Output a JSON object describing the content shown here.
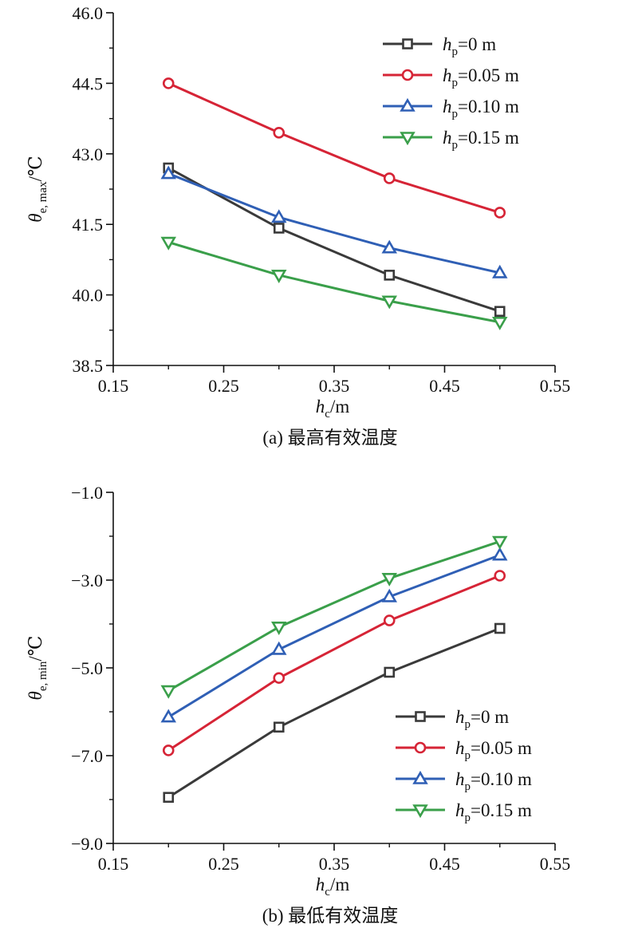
{
  "chart_data": [
    {
      "type": "line",
      "caption": "(a) 最高有效温度",
      "xlabel": {
        "main": "h",
        "sub": "c",
        "unit": "/m"
      },
      "ylabel": {
        "main": "θ",
        "sub": "e, max",
        "unit": "/℃"
      },
      "xlim": [
        0.15,
        0.55
      ],
      "ylim": [
        38.5,
        46.0
      ],
      "xticks": [
        0.15,
        0.25,
        0.35,
        0.45,
        0.55
      ],
      "xtick_labels": [
        "0.15",
        "0.25",
        "0.35",
        "0.45",
        "0.55"
      ],
      "yticks": [
        38.5,
        40.0,
        41.5,
        43.0,
        44.5,
        46.0
      ],
      "ytick_labels": [
        "38.5",
        "40.0",
        "41.5",
        "43.0",
        "44.5",
        "46.0"
      ],
      "legend_position": "top-right",
      "x": [
        0.2,
        0.3,
        0.4,
        0.5
      ],
      "series": [
        {
          "name": "h",
          "sub": "p",
          "value": "=0 m",
          "color": "#3a3a3a",
          "marker": "square",
          "values": [
            42.7,
            41.42,
            40.42,
            39.65
          ]
        },
        {
          "name": "h",
          "sub": "p",
          "value": "=0.05 m",
          "color": "#d62436",
          "marker": "circle",
          "values": [
            44.5,
            43.45,
            42.48,
            41.75
          ]
        },
        {
          "name": "h",
          "sub": "p",
          "value": "=0.10 m",
          "color": "#2f5fb5",
          "marker": "triangle-up",
          "values": [
            42.58,
            41.65,
            41.0,
            40.47
          ]
        },
        {
          "name": "h",
          "sub": "p",
          "value": "=0.15 m",
          "color": "#3a9f4a",
          "marker": "triangle-down",
          "values": [
            41.12,
            40.42,
            39.87,
            39.42
          ]
        }
      ]
    },
    {
      "type": "line",
      "caption": "(b) 最低有效温度",
      "xlabel": {
        "main": "h",
        "sub": "c",
        "unit": "/m"
      },
      "ylabel": {
        "main": "θ",
        "sub": "e, min",
        "unit": "/℃"
      },
      "xlim": [
        0.15,
        0.55
      ],
      "ylim": [
        -9.0,
        -1.0
      ],
      "xticks": [
        0.15,
        0.25,
        0.35,
        0.45,
        0.55
      ],
      "xtick_labels": [
        "0.15",
        "0.25",
        "0.35",
        "0.45",
        "0.55"
      ],
      "yticks": [
        -9.0,
        -7.0,
        -5.0,
        -3.0,
        -1.0
      ],
      "ytick_labels": [
        "−9.0",
        "−7.0",
        "−5.0",
        "−3.0",
        "−1.0"
      ],
      "legend_position": "bottom-right",
      "x": [
        0.2,
        0.3,
        0.4,
        0.5
      ],
      "series": [
        {
          "name": "h",
          "sub": "p",
          "value": "=0 m",
          "color": "#3a3a3a",
          "marker": "square",
          "values": [
            -7.95,
            -6.35,
            -5.1,
            -4.1
          ]
        },
        {
          "name": "h",
          "sub": "p",
          "value": "=0.05 m",
          "color": "#d62436",
          "marker": "circle",
          "values": [
            -6.88,
            -5.23,
            -3.92,
            -2.9
          ]
        },
        {
          "name": "h",
          "sub": "p",
          "value": "=0.10 m",
          "color": "#2f5fb5",
          "marker": "triangle-up",
          "values": [
            -6.12,
            -4.58,
            -3.38,
            -2.43
          ]
        },
        {
          "name": "h",
          "sub": "p",
          "value": "=0.15 m",
          "color": "#3a9f4a",
          "marker": "triangle-down",
          "values": [
            -5.52,
            -4.07,
            -2.96,
            -2.12
          ]
        }
      ]
    }
  ]
}
